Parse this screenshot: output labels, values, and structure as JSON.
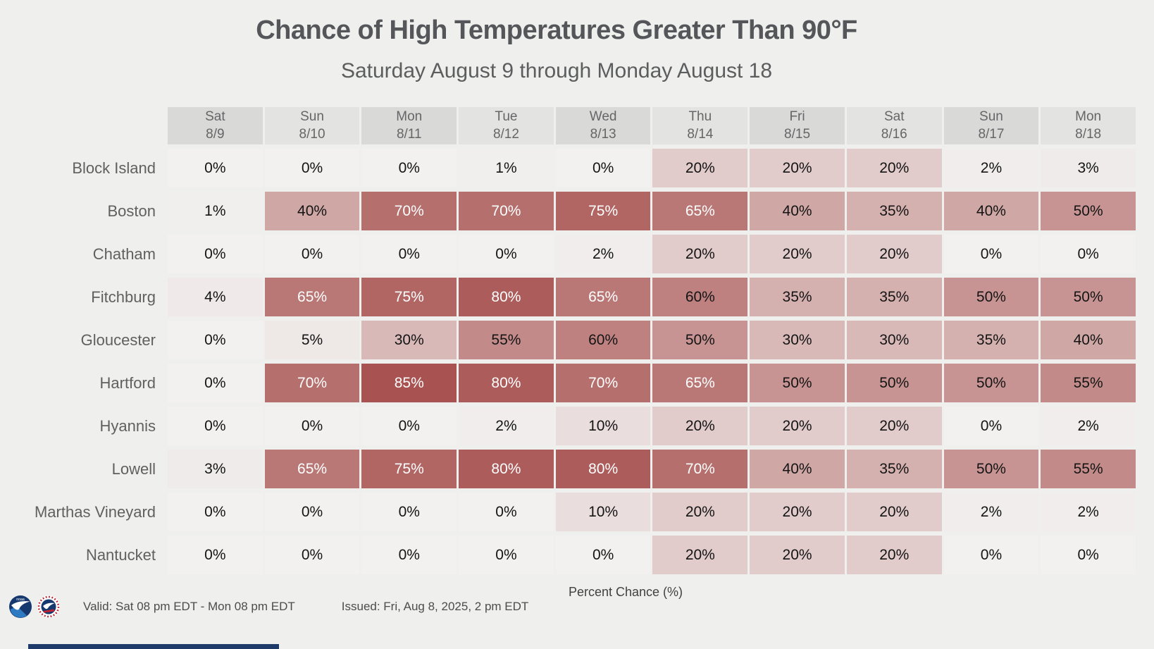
{
  "title": "Chance of High Temperatures Greater Than 90°F",
  "subtitle": "Saturday August 9 through Monday August 18",
  "legend_label": "Percent Chance (%)",
  "footer": {
    "valid": "Valid: Sat 08 pm EDT - Mon 08 pm EDT",
    "issued": "Issued: Fri, Aug 8, 2025, 2 pm EDT"
  },
  "colors": {
    "page_bg": "#efefed",
    "header_bg_odd": "#d9d9d8",
    "header_bg_even": "#e3e3e1",
    "scale_min": "#f2f1f0",
    "scale_max": "#9b3735",
    "cell_text_dark": "#141414",
    "cell_text_light": "#ffffff",
    "title_text": "#55565a",
    "muted_text": "#606060",
    "banner_navy": "#1d3a68"
  },
  "chart_data": {
    "type": "heatmap",
    "title": "Chance of High Temperatures Greater Than 90°F",
    "subtitle": "Saturday August 9 through Monday August 18",
    "unit": "percent",
    "value_range": [
      0,
      100
    ],
    "white_text_threshold": 65,
    "legend_label": "Percent Chance (%)",
    "columns": [
      {
        "day": "Sat",
        "date": "8/9"
      },
      {
        "day": "Sun",
        "date": "8/10"
      },
      {
        "day": "Mon",
        "date": "8/11"
      },
      {
        "day": "Tue",
        "date": "8/12"
      },
      {
        "day": "Wed",
        "date": "8/13"
      },
      {
        "day": "Thu",
        "date": "8/14"
      },
      {
        "day": "Fri",
        "date": "8/15"
      },
      {
        "day": "Sat",
        "date": "8/16"
      },
      {
        "day": "Sun",
        "date": "8/17"
      },
      {
        "day": "Mon",
        "date": "8/18"
      }
    ],
    "rows": [
      {
        "city": "Block Island",
        "values": [
          0,
          0,
          0,
          1,
          0,
          20,
          20,
          20,
          2,
          3
        ]
      },
      {
        "city": "Boston",
        "values": [
          1,
          40,
          70,
          70,
          75,
          65,
          40,
          35,
          40,
          50
        ]
      },
      {
        "city": "Chatham",
        "values": [
          0,
          0,
          0,
          0,
          2,
          20,
          20,
          20,
          0,
          0
        ]
      },
      {
        "city": "Fitchburg",
        "values": [
          4,
          65,
          75,
          80,
          65,
          60,
          35,
          35,
          50,
          50
        ]
      },
      {
        "city": "Gloucester",
        "values": [
          0,
          5,
          30,
          55,
          60,
          50,
          30,
          30,
          35,
          40
        ]
      },
      {
        "city": "Hartford",
        "values": [
          0,
          70,
          85,
          80,
          70,
          65,
          50,
          50,
          50,
          55
        ]
      },
      {
        "city": "Hyannis",
        "values": [
          0,
          0,
          0,
          2,
          10,
          20,
          20,
          20,
          0,
          2
        ]
      },
      {
        "city": "Lowell",
        "values": [
          3,
          65,
          75,
          80,
          80,
          70,
          40,
          35,
          50,
          55
        ]
      },
      {
        "city": "Marthas Vineyard",
        "values": [
          0,
          0,
          0,
          0,
          10,
          20,
          20,
          20,
          2,
          2
        ]
      },
      {
        "city": "Nantucket",
        "values": [
          0,
          0,
          0,
          0,
          0,
          20,
          20,
          20,
          0,
          0
        ]
      }
    ]
  }
}
